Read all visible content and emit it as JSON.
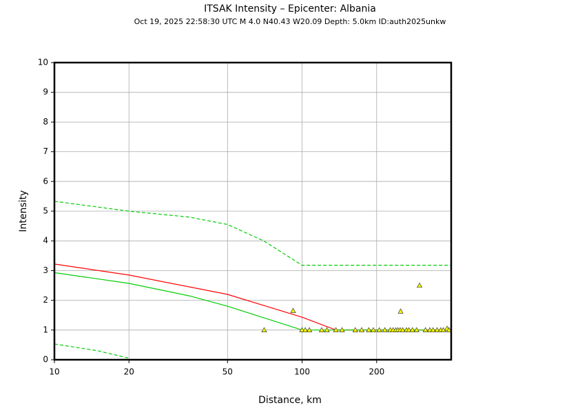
{
  "chart_data": {
    "type": "line",
    "title": "ITSAK Intensity –  Epicenter: Albania",
    "subtitle": "Oct 19, 2025 22:58:30 UTC   M 4.0   N40.43 W20.09   Depth: 5.0km   ID:auth2025unkw",
    "x_label": "Distance, km",
    "y_label": "Intensity",
    "xscale": "log",
    "xlim": [
      10,
      400
    ],
    "ylim": [
      0,
      10
    ],
    "xticks": [
      10,
      20,
      50,
      100,
      200
    ],
    "yticks": [
      0,
      1,
      2,
      3,
      4,
      5,
      6,
      7,
      8,
      9,
      10
    ],
    "grid": true,
    "series": [
      {
        "type": "line",
        "color": "#ff0000",
        "style": "solid",
        "x": [
          10,
          20,
          50,
          100,
          137,
          400
        ],
        "values": [
          3.22,
          2.85,
          2.2,
          1.43,
          1.0,
          1.0
        ]
      },
      {
        "type": "line",
        "color": "#00cc00",
        "style": "solid",
        "x": [
          10,
          20,
          35,
          50,
          100,
          400
        ],
        "values": [
          2.93,
          2.57,
          2.15,
          1.8,
          1.0,
          1.0
        ]
      },
      {
        "type": "line",
        "color": "#00cc00",
        "style": "dashed",
        "x": [
          10,
          20,
          35,
          50,
          70,
          100,
          400
        ],
        "values": [
          5.33,
          5.0,
          4.8,
          4.55,
          4.0,
          3.18,
          3.18
        ]
      },
      {
        "type": "line",
        "color": "#00cc00",
        "style": "dashed",
        "x": [
          10,
          15,
          20
        ],
        "values": [
          0.53,
          0.3,
          0.05
        ]
      },
      {
        "type": "scatter",
        "color": "#ffff00",
        "x": [
          70.3,
          92,
          100,
          103,
          107,
          120,
          126,
          137,
          145,
          164,
          174,
          186,
          194,
          205,
          216,
          227,
          233,
          239,
          244,
          249,
          250,
          255,
          264,
          270,
          279,
          290,
          298,
          315,
          328,
          338,
          351,
          363,
          372,
          385,
          392
        ],
        "values": [
          1,
          1.65,
          1,
          1,
          1,
          1,
          1,
          1,
          1,
          1,
          1,
          1,
          1,
          1,
          1,
          1,
          1,
          1,
          1,
          1,
          1.63,
          1,
          1,
          1,
          1,
          1,
          2.5,
          1,
          1,
          1,
          1,
          1,
          1,
          1.05,
          1
        ]
      }
    ]
  }
}
